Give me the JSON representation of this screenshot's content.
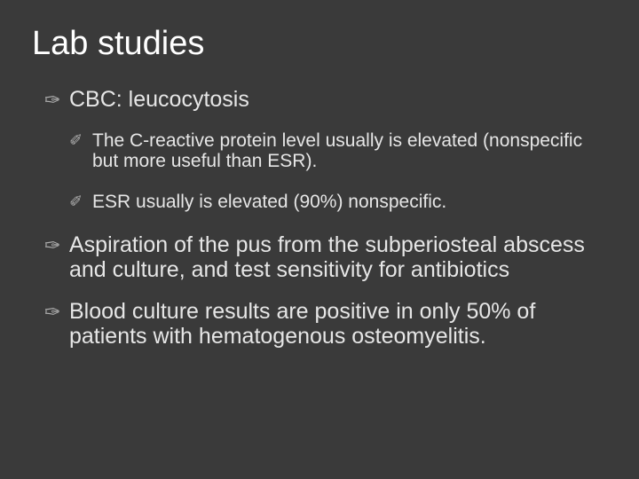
{
  "slide": {
    "title": "Lab studies",
    "background_color": "#3a3a3a",
    "title_color": "#ffffff",
    "text_color": "#e6e6e6",
    "bullet_color": "#b0b0b0",
    "title_fontsize": 38,
    "level1_fontsize": 25,
    "level2_fontsize": 21,
    "bullet_level1_glyph": "✑",
    "bullet_level2_glyph": "✐",
    "items": [
      {
        "text": "CBC: leucocytosis",
        "children": [
          {
            "text": "The C-reactive protein level usually is elevated (nonspecific but more useful than ESR)."
          },
          {
            "text": "ESR usually is elevated (90%) nonspecific."
          }
        ]
      },
      {
        "text": "Aspiration of the pus from the subperiosteal abscess and culture, and test sensitivity for antibiotics"
      },
      {
        "text": "Blood culture results are positive in only 50% of patients with hematogenous osteomyelitis."
      }
    ]
  }
}
